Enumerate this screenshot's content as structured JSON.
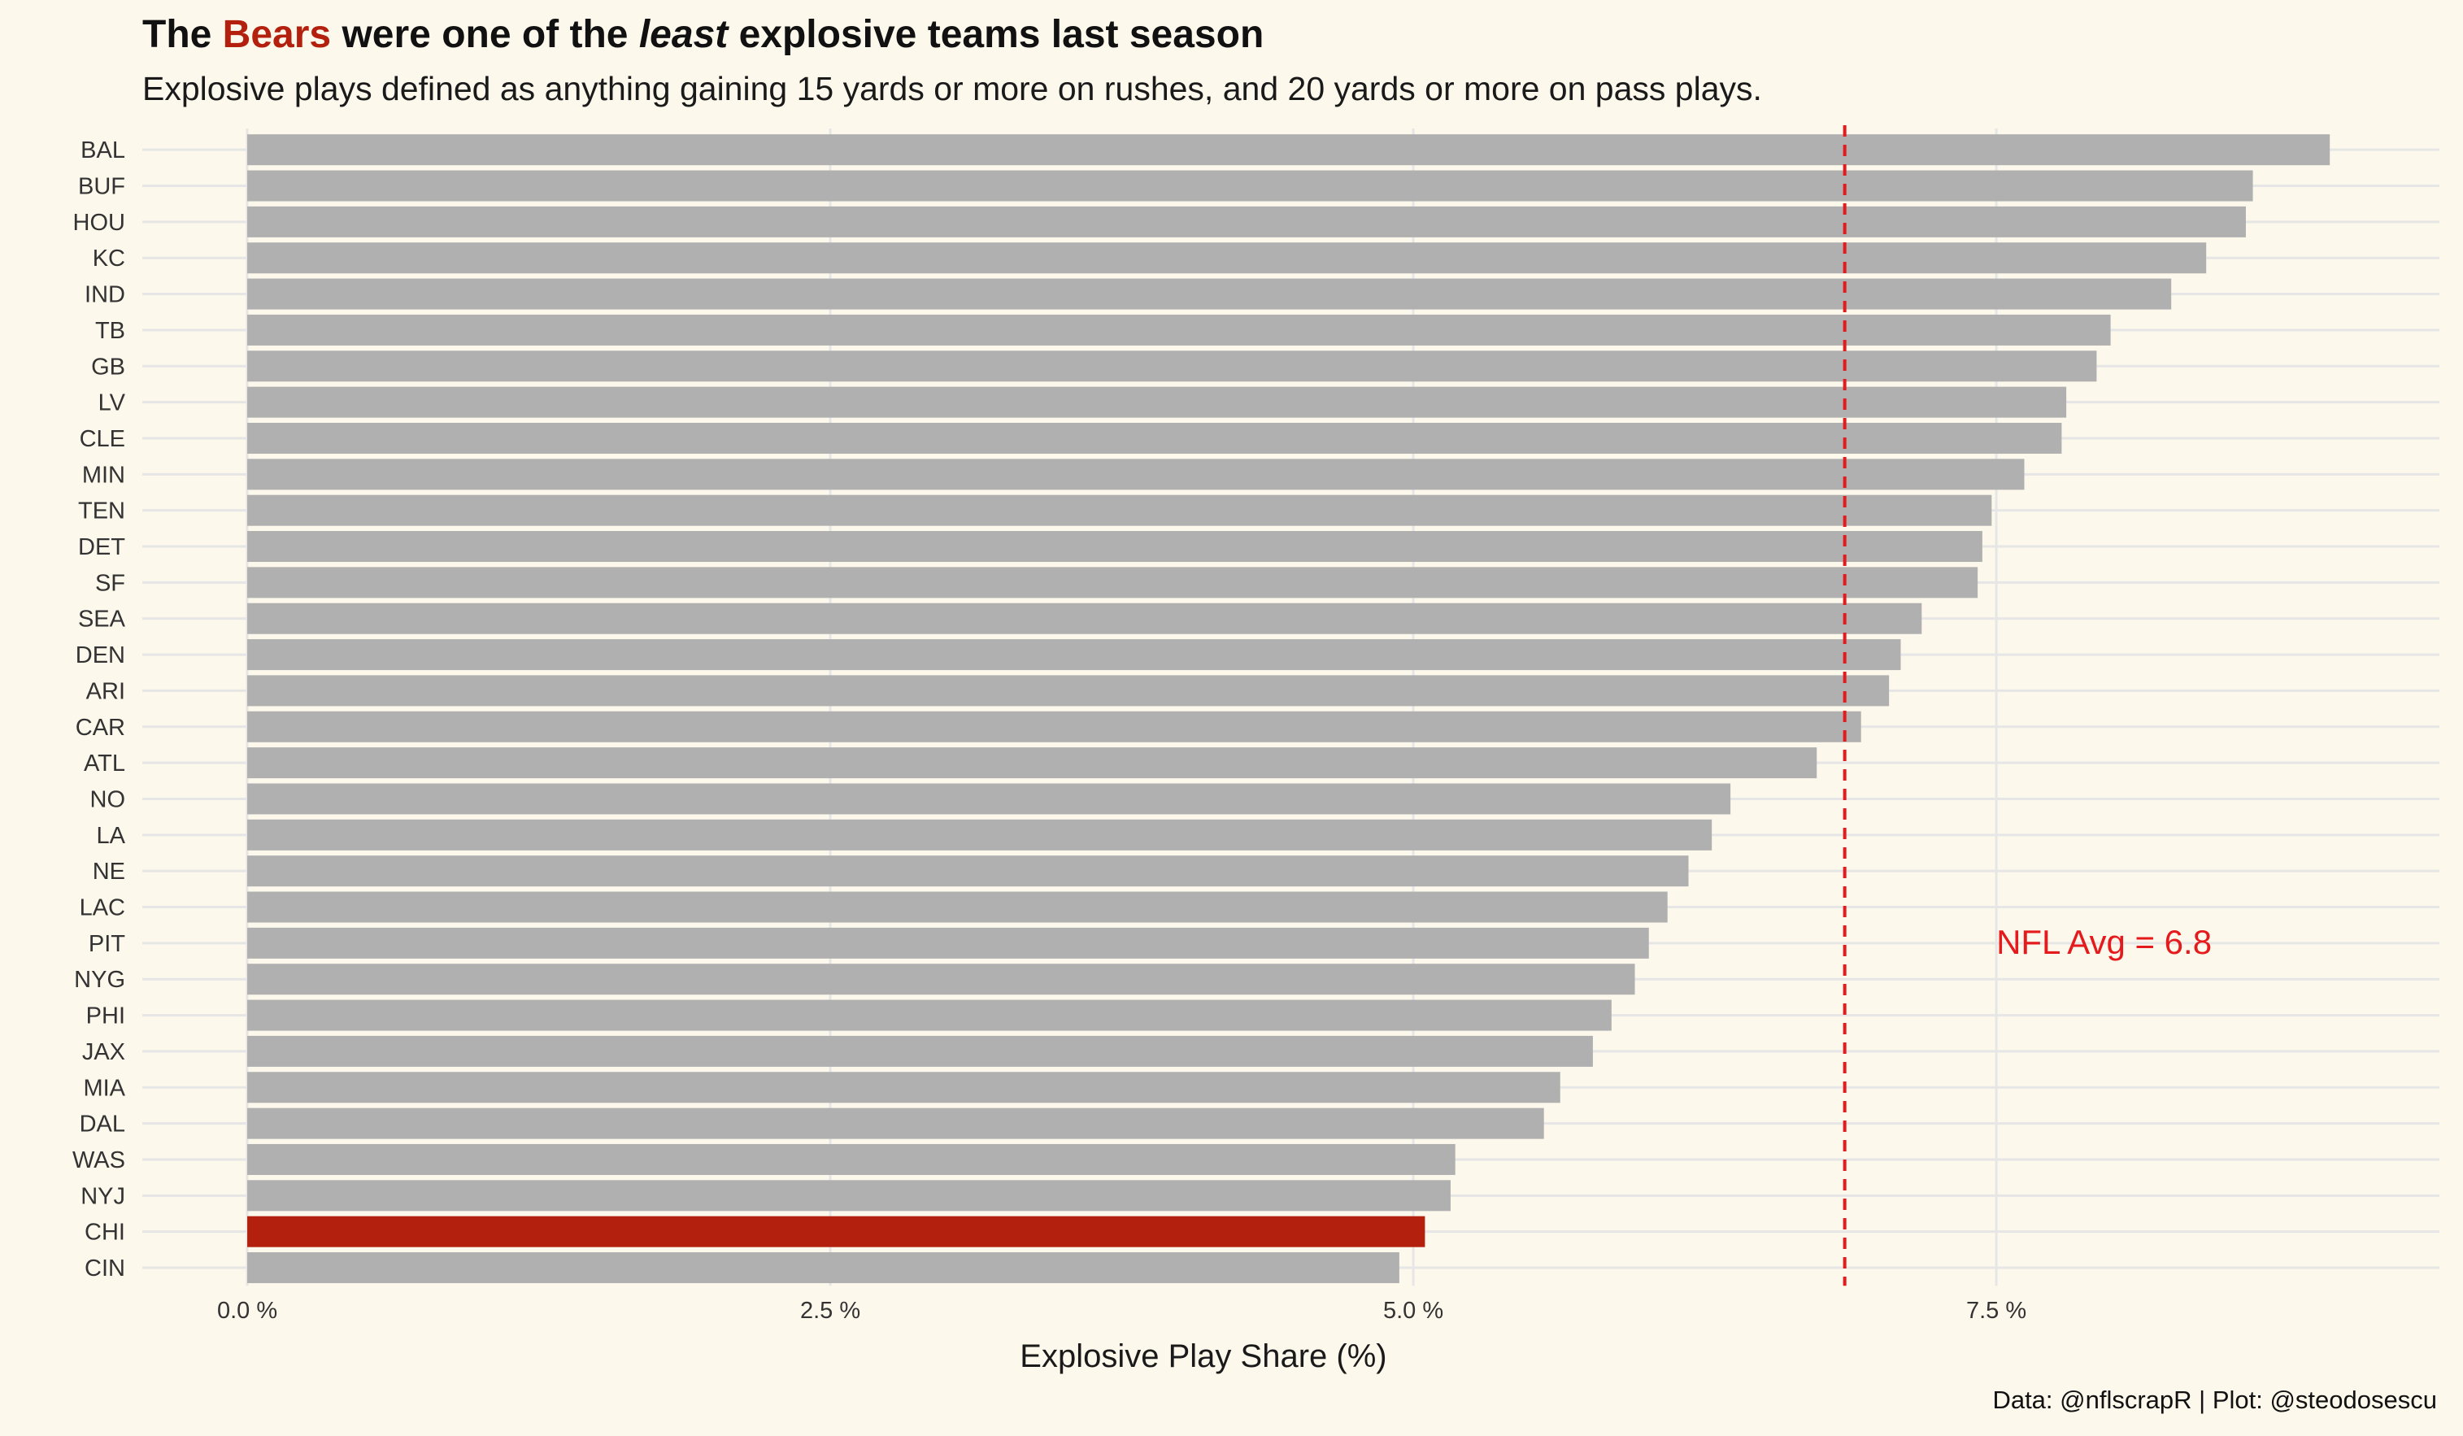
{
  "title": {
    "prefix": "The ",
    "highlight": "Bears",
    "middle": " were one of the ",
    "emph": "least",
    "suffix": " explosive teams last season"
  },
  "subtitle": "Explosive plays defined as anything gaining 15 yards or more on rushes, and 20 yards or more on pass plays.",
  "caption": "Data: @nflscrapR | Plot: @steodosescu",
  "colors": {
    "background": "#fdf8ec",
    "bar_default": "#b0b0b0",
    "bar_highlight": "#b3200e",
    "avg_line": "#e41a1c",
    "grid": "#e6e6e6"
  },
  "chart_data": {
    "type": "bar",
    "orientation": "horizontal",
    "categories": [
      "BAL",
      "BUF",
      "HOU",
      "KC",
      "IND",
      "TB",
      "GB",
      "LV",
      "CLE",
      "MIN",
      "TEN",
      "DET",
      "SF",
      "SEA",
      "DEN",
      "ARI",
      "CAR",
      "ATL",
      "NO",
      "LA",
      "NE",
      "LAC",
      "PIT",
      "NYG",
      "PHI",
      "JAX",
      "MIA",
      "DAL",
      "WAS",
      "NYJ",
      "CHI",
      "CIN"
    ],
    "values": [
      8.93,
      8.6,
      8.57,
      8.4,
      8.25,
      7.99,
      7.93,
      7.8,
      7.78,
      7.62,
      7.48,
      7.44,
      7.42,
      7.18,
      7.09,
      7.04,
      6.92,
      6.73,
      6.36,
      6.28,
      6.18,
      6.09,
      6.01,
      5.95,
      5.85,
      5.77,
      5.63,
      5.56,
      5.18,
      5.16,
      5.05,
      4.94
    ],
    "highlight_category": "CHI",
    "xlabel": "Explosive Play Share (%)",
    "ylabel": "",
    "xlim": [
      -0.45,
      9.4
    ],
    "x_ticks": [
      0,
      2.5,
      5,
      7.5
    ],
    "x_tick_labels": [
      "0.0 %",
      "2.5 %",
      "5.0 %",
      "7.5 %"
    ],
    "reference_line": {
      "value": 6.85,
      "label": "NFL Avg = 6.8",
      "style": "dashed"
    },
    "grid": true,
    "legend": "none"
  }
}
